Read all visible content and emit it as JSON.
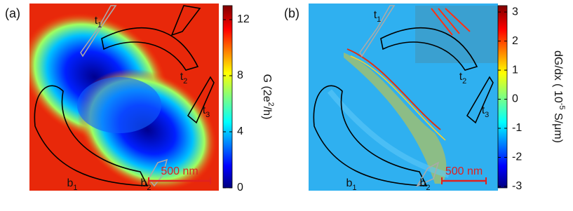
{
  "charts": [
    {
      "type": "heatmap",
      "panel_label": "(a)",
      "colorbar_label": [
        "G (2e",
        "2",
        "/h)"
      ],
      "clim": [
        0,
        13
      ],
      "cticks": [
        0,
        4,
        8,
        12
      ],
      "scale_bar": "500 nm",
      "gates": [
        {
          "text": "t",
          "sub": "1"
        },
        {
          "text": "t",
          "sub": "2"
        },
        {
          "text": "t",
          "sub": "3"
        },
        {
          "text": "b",
          "sub": "1"
        },
        {
          "text": "b",
          "sub": "2"
        }
      ]
    },
    {
      "type": "heatmap",
      "panel_label": "(b)",
      "colorbar_label": [
        "dG/dx ( 10",
        "-5",
        " S/μm)"
      ],
      "clim": [
        -3.05,
        3.22
      ],
      "cticks": [
        3,
        2,
        1,
        0,
        -1,
        -2,
        -3
      ],
      "scale_bar": "500 nm",
      "gates": [
        {
          "text": "t",
          "sub": "1"
        },
        {
          "text": "t",
          "sub": "2"
        },
        {
          "text": "t",
          "sub": "3"
        },
        {
          "text": "b",
          "sub": "1"
        },
        {
          "text": "b",
          "sub": "2"
        }
      ]
    }
  ]
}
